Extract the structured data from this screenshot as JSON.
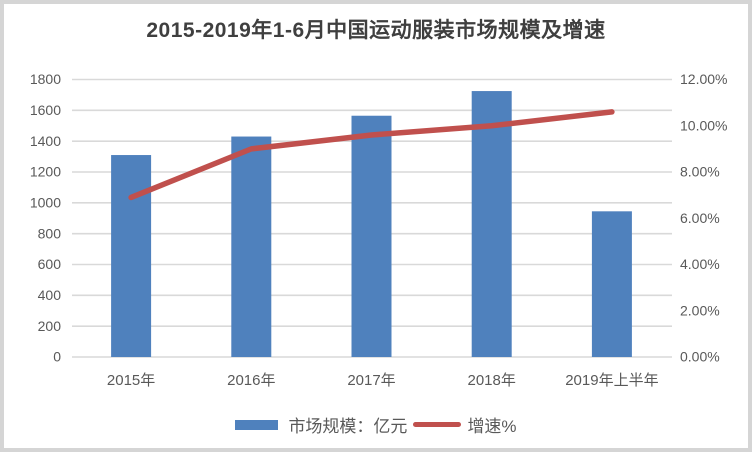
{
  "page": {
    "background": "#ffffff",
    "border_color": "#d5d5d5"
  },
  "chart_data": {
    "type": "bar+line",
    "title": "2015-2019年1-6月中国运动服装市场规模及增速",
    "categories": [
      "2015年",
      "2016年",
      "2017年",
      "2018年",
      "2019年上半年"
    ],
    "series": [
      {
        "name": "市场规模：亿元",
        "type": "bar",
        "axis": "left",
        "color": "#4F81BD",
        "values": [
          1310,
          1430,
          1565,
          1725,
          945
        ]
      },
      {
        "name": "增速%",
        "type": "line",
        "axis": "right",
        "color": "#C0504D",
        "values": [
          6.9,
          9.0,
          9.6,
          10.0,
          10.6
        ]
      }
    ],
    "left_axis": {
      "min": 0,
      "max": 1800,
      "step": 200,
      "tick_labels": [
        "0",
        "200",
        "400",
        "600",
        "800",
        "1000",
        "1200",
        "1400",
        "1600",
        "1800"
      ]
    },
    "right_axis": {
      "min": 0,
      "max": 12,
      "step": 2,
      "tick_labels": [
        "0.00%",
        "2.00%",
        "4.00%",
        "6.00%",
        "8.00%",
        "10.00%",
        "12.00%"
      ]
    },
    "grid": true,
    "grid_color": "#d9d9d9",
    "text_color": "#595959",
    "legend_position": "bottom"
  }
}
